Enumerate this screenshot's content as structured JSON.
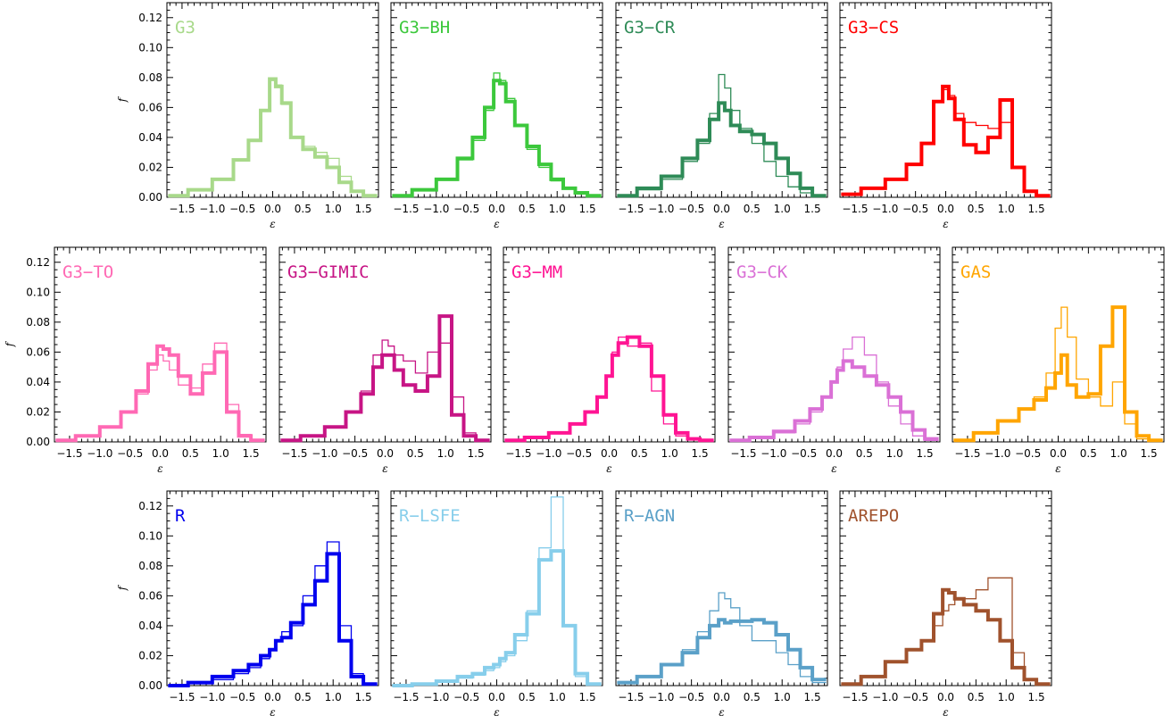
{
  "figure": {
    "xlabel": "ε",
    "ylabel": "f"
  },
  "chart_data": [
    {
      "type": "line",
      "title": "G3",
      "color": "#a8d98a",
      "xlim": [
        -1.75,
        1.75
      ],
      "ylim": [
        0,
        0.13
      ],
      "x": [
        -1.6,
        -1.2,
        -0.8,
        -0.5,
        -0.3,
        -0.1,
        0.0,
        0.1,
        0.2,
        0.4,
        0.6,
        0.8,
        1.0,
        1.2,
        1.4,
        1.6
      ],
      "series": [
        {
          "style": "thick",
          "values": [
            0.001,
            0.005,
            0.012,
            0.025,
            0.038,
            0.058,
            0.079,
            0.074,
            0.063,
            0.04,
            0.032,
            0.027,
            0.02,
            0.01,
            0.004,
            0.001
          ]
        },
        {
          "style": "thin",
          "values": [
            0.001,
            0.005,
            0.012,
            0.025,
            0.038,
            0.058,
            0.078,
            0.075,
            0.062,
            0.04,
            0.034,
            0.03,
            0.026,
            0.014,
            0.004,
            0.001
          ]
        }
      ]
    },
    {
      "type": "line",
      "title": "G3−BH",
      "color": "#3cc83c",
      "xlim": [
        -1.75,
        1.75
      ],
      "ylim": [
        0,
        0.13
      ],
      "x": [
        -1.6,
        -1.2,
        -0.8,
        -0.5,
        -0.3,
        -0.1,
        0.0,
        0.1,
        0.2,
        0.4,
        0.6,
        0.8,
        1.0,
        1.2,
        1.4,
        1.6
      ],
      "series": [
        {
          "style": "thick",
          "values": [
            0.001,
            0.005,
            0.012,
            0.026,
            0.04,
            0.06,
            0.078,
            0.076,
            0.064,
            0.048,
            0.034,
            0.022,
            0.012,
            0.006,
            0.003,
            0.001
          ]
        },
        {
          "style": "thin",
          "values": [
            0.001,
            0.005,
            0.012,
            0.025,
            0.038,
            0.058,
            0.083,
            0.078,
            0.066,
            0.048,
            0.032,
            0.02,
            0.011,
            0.006,
            0.003,
            0.001
          ]
        }
      ]
    },
    {
      "type": "line",
      "title": "G3−CR",
      "color": "#2e8b57",
      "xlim": [
        -1.75,
        1.75
      ],
      "ylim": [
        0,
        0.13
      ],
      "x": [
        -1.6,
        -1.2,
        -0.8,
        -0.5,
        -0.3,
        -0.1,
        0.0,
        0.1,
        0.2,
        0.4,
        0.6,
        0.8,
        1.0,
        1.2,
        1.4,
        1.6
      ],
      "series": [
        {
          "style": "thick",
          "values": [
            0.001,
            0.006,
            0.014,
            0.026,
            0.038,
            0.052,
            0.063,
            0.058,
            0.048,
            0.044,
            0.042,
            0.036,
            0.026,
            0.016,
            0.006,
            0.001
          ]
        },
        {
          "style": "thin",
          "values": [
            0.001,
            0.005,
            0.012,
            0.024,
            0.036,
            0.056,
            0.082,
            0.073,
            0.058,
            0.046,
            0.036,
            0.024,
            0.014,
            0.007,
            0.003,
            0.001
          ]
        }
      ]
    },
    {
      "type": "line",
      "title": "G3−CS",
      "color": "#ff0000",
      "xlim": [
        -1.75,
        1.75
      ],
      "ylim": [
        0,
        0.13
      ],
      "x": [
        -1.6,
        -1.2,
        -0.8,
        -0.5,
        -0.3,
        -0.1,
        0.0,
        0.1,
        0.2,
        0.4,
        0.6,
        0.8,
        1.0,
        1.2,
        1.4,
        1.6
      ],
      "series": [
        {
          "style": "thick",
          "values": [
            0.002,
            0.006,
            0.012,
            0.022,
            0.036,
            0.064,
            0.074,
            0.066,
            0.052,
            0.035,
            0.03,
            0.04,
            0.065,
            0.02,
            0.004,
            0.001
          ]
        },
        {
          "style": "thin",
          "values": [
            0.002,
            0.006,
            0.012,
            0.022,
            0.036,
            0.064,
            0.072,
            0.068,
            0.056,
            0.05,
            0.048,
            0.046,
            0.05,
            0.02,
            0.004,
            0.001
          ]
        }
      ]
    },
    {
      "type": "line",
      "title": "G3−TO",
      "color": "#ff69b4",
      "xlim": [
        -1.75,
        1.75
      ],
      "ylim": [
        0,
        0.13
      ],
      "x": [
        -1.6,
        -1.2,
        -0.8,
        -0.5,
        -0.3,
        -0.1,
        0.0,
        0.1,
        0.2,
        0.4,
        0.6,
        0.8,
        1.0,
        1.2,
        1.4,
        1.6
      ],
      "series": [
        {
          "style": "thick",
          "values": [
            0.001,
            0.004,
            0.01,
            0.02,
            0.034,
            0.052,
            0.064,
            0.062,
            0.058,
            0.044,
            0.032,
            0.046,
            0.06,
            0.02,
            0.004,
            0.001
          ]
        },
        {
          "style": "thin",
          "values": [
            0.001,
            0.004,
            0.01,
            0.02,
            0.032,
            0.048,
            0.058,
            0.054,
            0.048,
            0.038,
            0.036,
            0.052,
            0.066,
            0.025,
            0.005,
            0.001
          ]
        }
      ]
    },
    {
      "type": "line",
      "title": "G3−GIMIC",
      "color": "#c71585",
      "xlim": [
        -1.75,
        1.75
      ],
      "ylim": [
        0,
        0.13
      ],
      "x": [
        -1.6,
        -1.2,
        -0.8,
        -0.5,
        -0.3,
        -0.1,
        0.0,
        0.1,
        0.2,
        0.4,
        0.6,
        0.8,
        1.0,
        1.2,
        1.4,
        1.6
      ],
      "series": [
        {
          "style": "thick",
          "values": [
            0.001,
            0.004,
            0.01,
            0.02,
            0.032,
            0.05,
            0.058,
            0.058,
            0.048,
            0.038,
            0.034,
            0.044,
            0.084,
            0.018,
            0.004,
            0.001
          ]
        },
        {
          "style": "thin",
          "values": [
            0.001,
            0.004,
            0.01,
            0.02,
            0.034,
            0.058,
            0.068,
            0.064,
            0.058,
            0.054,
            0.046,
            0.06,
            0.066,
            0.03,
            0.006,
            0.001
          ]
        }
      ]
    },
    {
      "type": "line",
      "title": "G3−MM",
      "color": "#ff1493",
      "xlim": [
        -1.75,
        1.75
      ],
      "ylim": [
        0,
        0.13
      ],
      "x": [
        -1.6,
        -1.2,
        -0.8,
        -0.5,
        -0.3,
        -0.1,
        0.0,
        0.1,
        0.2,
        0.4,
        0.6,
        0.8,
        1.0,
        1.2,
        1.4,
        1.6
      ],
      "series": [
        {
          "style": "thick",
          "values": [
            0.001,
            0.003,
            0.006,
            0.012,
            0.02,
            0.03,
            0.044,
            0.058,
            0.066,
            0.07,
            0.064,
            0.044,
            0.018,
            0.006,
            0.002,
            0.001
          ]
        },
        {
          "style": "thin",
          "values": [
            0.001,
            0.003,
            0.006,
            0.012,
            0.02,
            0.03,
            0.044,
            0.06,
            0.07,
            0.064,
            0.066,
            0.034,
            0.012,
            0.004,
            0.002,
            0.001
          ]
        }
      ]
    },
    {
      "type": "line",
      "title": "G3−CK",
      "color": "#da70d6",
      "xlim": [
        -1.75,
        1.75
      ],
      "ylim": [
        0,
        0.13
      ],
      "x": [
        -1.6,
        -1.2,
        -0.8,
        -0.5,
        -0.3,
        -0.1,
        0.0,
        0.1,
        0.2,
        0.4,
        0.6,
        0.8,
        1.0,
        1.2,
        1.4,
        1.6
      ],
      "series": [
        {
          "style": "thick",
          "values": [
            0.001,
            0.003,
            0.007,
            0.014,
            0.022,
            0.03,
            0.04,
            0.048,
            0.054,
            0.05,
            0.044,
            0.038,
            0.03,
            0.02,
            0.008,
            0.002
          ]
        },
        {
          "style": "thin",
          "values": [
            0.001,
            0.003,
            0.006,
            0.012,
            0.02,
            0.03,
            0.04,
            0.05,
            0.062,
            0.07,
            0.058,
            0.04,
            0.024,
            0.012,
            0.004,
            0.001
          ]
        }
      ]
    },
    {
      "type": "line",
      "title": "GAS",
      "color": "#ffa500",
      "xlim": [
        -1.75,
        1.75
      ],
      "ylim": [
        0,
        0.13
      ],
      "x": [
        -1.6,
        -1.2,
        -0.8,
        -0.5,
        -0.3,
        -0.1,
        0.0,
        0.1,
        0.2,
        0.4,
        0.6,
        0.8,
        1.0,
        1.2,
        1.4,
        1.6
      ],
      "series": [
        {
          "style": "thick",
          "values": [
            0.001,
            0.006,
            0.014,
            0.022,
            0.028,
            0.036,
            0.046,
            0.058,
            0.038,
            0.03,
            0.032,
            0.064,
            0.09,
            0.02,
            0.004,
            0.001
          ]
        },
        {
          "style": "thin",
          "values": [
            0.001,
            0.006,
            0.014,
            0.022,
            0.03,
            0.046,
            0.076,
            0.09,
            0.07,
            0.042,
            0.03,
            0.024,
            0.04,
            0.012,
            0.002,
            0.001
          ]
        }
      ]
    },
    {
      "type": "line",
      "title": "R",
      "color": "#0000ee",
      "xlim": [
        -1.75,
        1.75
      ],
      "ylim": [
        0,
        0.13
      ],
      "x": [
        -1.6,
        -1.2,
        -0.8,
        -0.5,
        -0.3,
        -0.1,
        0.0,
        0.1,
        0.2,
        0.4,
        0.6,
        0.8,
        1.0,
        1.2,
        1.4,
        1.6
      ],
      "series": [
        {
          "style": "thick",
          "values": [
            0.0,
            0.002,
            0.006,
            0.01,
            0.014,
            0.02,
            0.024,
            0.03,
            0.032,
            0.042,
            0.054,
            0.07,
            0.088,
            0.03,
            0.006,
            0.001
          ]
        },
        {
          "style": "thin",
          "values": [
            0.0,
            0.002,
            0.004,
            0.008,
            0.012,
            0.018,
            0.024,
            0.03,
            0.036,
            0.04,
            0.06,
            0.08,
            0.096,
            0.04,
            0.008,
            0.001
          ]
        }
      ]
    },
    {
      "type": "line",
      "title": "R−LSFE",
      "color": "#87ceeb",
      "xlim": [
        -1.75,
        1.75
      ],
      "ylim": [
        0,
        0.13
      ],
      "x": [
        -1.6,
        -1.2,
        -0.8,
        -0.5,
        -0.3,
        -0.1,
        0.0,
        0.1,
        0.2,
        0.4,
        0.6,
        0.8,
        1.0,
        1.2,
        1.4,
        1.6
      ],
      "series": [
        {
          "style": "thick",
          "values": [
            0.0,
            0.001,
            0.003,
            0.006,
            0.008,
            0.012,
            0.014,
            0.018,
            0.022,
            0.034,
            0.048,
            0.084,
            0.09,
            0.04,
            0.008,
            0.001
          ]
        },
        {
          "style": "thin",
          "values": [
            0.0,
            0.001,
            0.003,
            0.005,
            0.007,
            0.01,
            0.012,
            0.016,
            0.02,
            0.03,
            0.05,
            0.092,
            0.126,
            0.04,
            0.006,
            0.001
          ]
        }
      ]
    },
    {
      "type": "line",
      "title": "R−AGN",
      "color": "#5aa0c8",
      "xlim": [
        -1.75,
        1.75
      ],
      "ylim": [
        0,
        0.13
      ],
      "x": [
        -1.6,
        -1.2,
        -0.8,
        -0.5,
        -0.3,
        -0.1,
        0.0,
        0.1,
        0.2,
        0.4,
        0.6,
        0.8,
        1.0,
        1.2,
        1.4,
        1.6
      ],
      "series": [
        {
          "style": "thick",
          "values": [
            0.002,
            0.006,
            0.014,
            0.022,
            0.032,
            0.04,
            0.044,
            0.042,
            0.043,
            0.043,
            0.044,
            0.042,
            0.034,
            0.024,
            0.012,
            0.004
          ]
        },
        {
          "style": "thin",
          "values": [
            0.002,
            0.006,
            0.014,
            0.024,
            0.036,
            0.05,
            0.062,
            0.058,
            0.052,
            0.04,
            0.03,
            0.03,
            0.022,
            0.014,
            0.006,
            0.002
          ]
        }
      ]
    },
    {
      "type": "line",
      "title": "AREPO",
      "color": "#a0522d",
      "xlim": [
        -1.75,
        1.75
      ],
      "ylim": [
        0,
        0.13
      ],
      "x": [
        -1.6,
        -1.2,
        -0.8,
        -0.5,
        -0.3,
        -0.1,
        0.0,
        0.1,
        0.2,
        0.4,
        0.6,
        0.8,
        1.0,
        1.2,
        1.4,
        1.6
      ],
      "series": [
        {
          "style": "thick",
          "values": [
            0.001,
            0.006,
            0.016,
            0.024,
            0.03,
            0.048,
            0.064,
            0.062,
            0.058,
            0.054,
            0.05,
            0.044,
            0.03,
            0.012,
            0.004,
            0.001
          ]
        },
        {
          "style": "thin",
          "values": [
            0.001,
            0.006,
            0.016,
            0.024,
            0.03,
            0.04,
            0.05,
            0.054,
            0.058,
            0.058,
            0.064,
            0.072,
            0.072,
            0.022,
            0.004,
            0.001
          ]
        }
      ]
    }
  ]
}
